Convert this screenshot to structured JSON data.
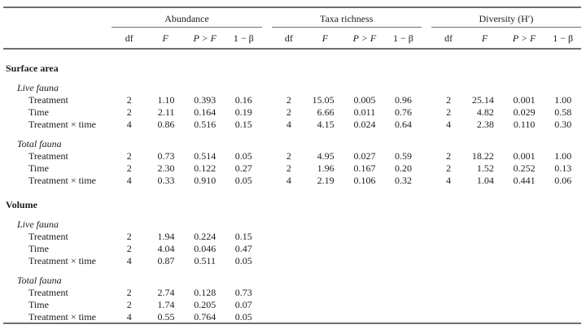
{
  "table": {
    "header": {
      "groups": [
        "Abundance",
        "Taxa richness",
        "Diversity (H′)"
      ],
      "subcols": [
        "df",
        "F",
        "P > F",
        "1 − β"
      ]
    },
    "rows": [
      {
        "type": "section",
        "label": "Surface area"
      },
      {
        "type": "subsection",
        "label": "Live fauna"
      },
      {
        "type": "data",
        "label": "Treatment",
        "cells": [
          "2",
          "1.10",
          "0.393",
          "0.16",
          "2",
          "15.05",
          "0.005",
          "0.96",
          "2",
          "25.14",
          "0.001",
          "1.00"
        ]
      },
      {
        "type": "data",
        "label": "Time",
        "cells": [
          "2",
          "2.11",
          "0.164",
          "0.19",
          "2",
          "6.66",
          "0.011",
          "0.76",
          "2",
          "4.82",
          "0.029",
          "0.58"
        ]
      },
      {
        "type": "data",
        "label": "Treatment × time",
        "cells": [
          "4",
          "0.86",
          "0.516",
          "0.15",
          "4",
          "4.15",
          "0.024",
          "0.64",
          "4",
          "2.38",
          "0.110",
          "0.30"
        ]
      },
      {
        "type": "subsection",
        "label": "Total fauna"
      },
      {
        "type": "data",
        "label": "Treatment",
        "cells": [
          "2",
          "0.73",
          "0.514",
          "0.05",
          "2",
          "4.95",
          "0.027",
          "0.59",
          "2",
          "18.22",
          "0.001",
          "1.00"
        ]
      },
      {
        "type": "data",
        "label": "Time",
        "cells": [
          "2",
          "2.30",
          "0.122",
          "0.27",
          "2",
          "1.96",
          "0.167",
          "0.20",
          "2",
          "1.52",
          "0.252",
          "0.13"
        ]
      },
      {
        "type": "data",
        "label": "Treatment × time",
        "cells": [
          "4",
          "0.33",
          "0.910",
          "0.05",
          "4",
          "2.19",
          "0.106",
          "0.32",
          "4",
          "1.04",
          "0.441",
          "0.06"
        ]
      },
      {
        "type": "section",
        "label": "Volume"
      },
      {
        "type": "subsection",
        "label": "Live fauna"
      },
      {
        "type": "data",
        "label": "Treatment",
        "cells": [
          "2",
          "1.94",
          "0.224",
          "0.15"
        ]
      },
      {
        "type": "data",
        "label": "Time",
        "cells": [
          "2",
          "4.04",
          "0.046",
          "0.47"
        ]
      },
      {
        "type": "data",
        "label": "Treatment × time",
        "cells": [
          "4",
          "0.87",
          "0.511",
          "0.05"
        ]
      },
      {
        "type": "subsection",
        "label": "Total fauna"
      },
      {
        "type": "data",
        "label": "Treatment",
        "cells": [
          "2",
          "2.74",
          "0.128",
          "0.73"
        ]
      },
      {
        "type": "data",
        "label": "Time",
        "cells": [
          "2",
          "1.74",
          "0.205",
          "0.07"
        ]
      },
      {
        "type": "data",
        "label": "Treatment × time",
        "cells": [
          "4",
          "0.55",
          "0.764",
          "0.05"
        ]
      }
    ]
  }
}
